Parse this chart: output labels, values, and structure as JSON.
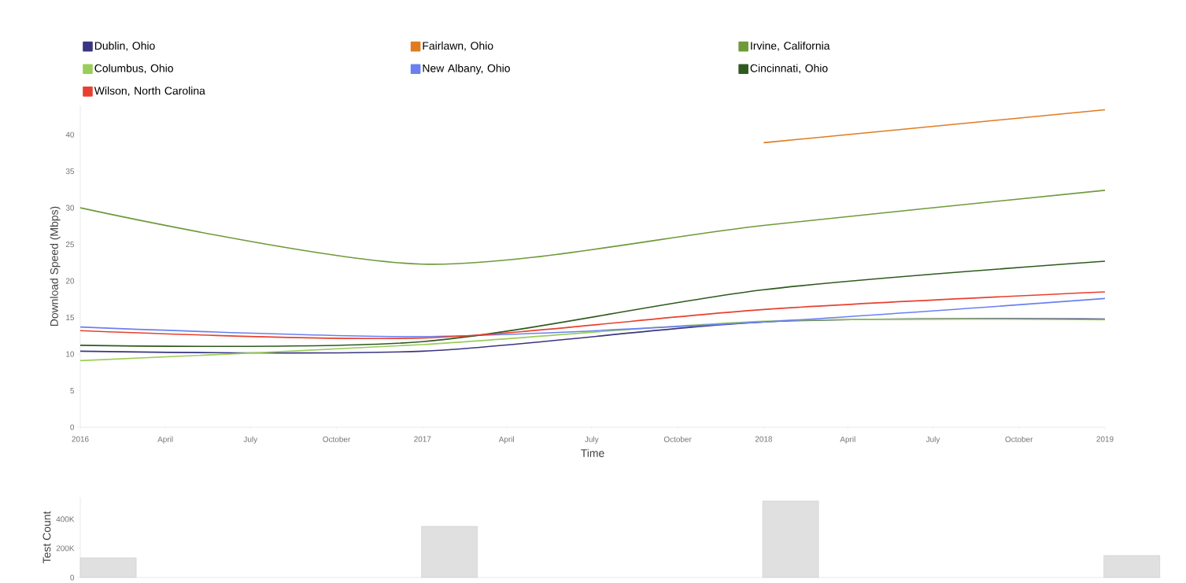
{
  "chart_data": [
    {
      "type": "line",
      "xlabel": "Time",
      "ylabel": "Download Speed (Mbps)",
      "legend": "top",
      "x": [
        "2016-01",
        "2017-01",
        "2018-01",
        "2019-01"
      ],
      "series": [
        {
          "name": "Dublin, Ohio",
          "color": "#3a3580",
          "values": [
            10.4,
            10.4,
            14.4,
            14.8
          ]
        },
        {
          "name": "Fairlawn, Ohio",
          "color": "#e07b20",
          "values": [
            null,
            null,
            38.9,
            43.4
          ]
        },
        {
          "name": "Irvine, California",
          "color": "#6f9a3a",
          "values": [
            30.0,
            22.3,
            27.6,
            32.4
          ]
        },
        {
          "name": "Columbus, Ohio",
          "color": "#9acd5a",
          "values": [
            9.1,
            11.3,
            14.5,
            14.7
          ]
        },
        {
          "name": "New Albany, Ohio",
          "color": "#6a80f0",
          "values": [
            13.7,
            12.4,
            14.4,
            17.6
          ]
        },
        {
          "name": "Cincinnati, Ohio",
          "color": "#2f5a1e",
          "values": [
            11.2,
            11.7,
            18.8,
            22.7
          ]
        },
        {
          "name": "Wilson, North Carolina",
          "color": "#e8402f",
          "values": [
            13.2,
            12.2,
            16.1,
            18.5
          ]
        }
      ],
      "xlim": [
        "2016-01",
        "2019-01"
      ],
      "ylim": [
        0,
        44
      ],
      "xticks": [
        {
          "value": "2016-01",
          "label": "2016"
        },
        {
          "value": "2016-04",
          "label": "April"
        },
        {
          "value": "2016-07",
          "label": "July"
        },
        {
          "value": "2016-10",
          "label": "October"
        },
        {
          "value": "2017-01",
          "label": "2017"
        },
        {
          "value": "2017-04",
          "label": "April"
        },
        {
          "value": "2017-07",
          "label": "July"
        },
        {
          "value": "2017-10",
          "label": "October"
        },
        {
          "value": "2018-01",
          "label": "2018"
        },
        {
          "value": "2018-04",
          "label": "April"
        },
        {
          "value": "2018-07",
          "label": "July"
        },
        {
          "value": "2018-10",
          "label": "October"
        },
        {
          "value": "2019-01",
          "label": "2019"
        }
      ],
      "yticks": [
        0,
        5,
        10,
        15,
        20,
        25,
        30,
        35,
        40
      ]
    },
    {
      "type": "bar",
      "ylabel": "Test Count",
      "categories": [
        null,
        null,
        null,
        null
      ],
      "values": [
        135000,
        351000,
        524000,
        151000
      ],
      "color": "#e0e0e0",
      "ylim": [
        0,
        550000
      ],
      "yticks": [
        0,
        {
          "value": 200000,
          "label": "200K"
        },
        {
          "value": 400000,
          "label": "400K"
        }
      ],
      "tick_labels": "y"
    }
  ]
}
